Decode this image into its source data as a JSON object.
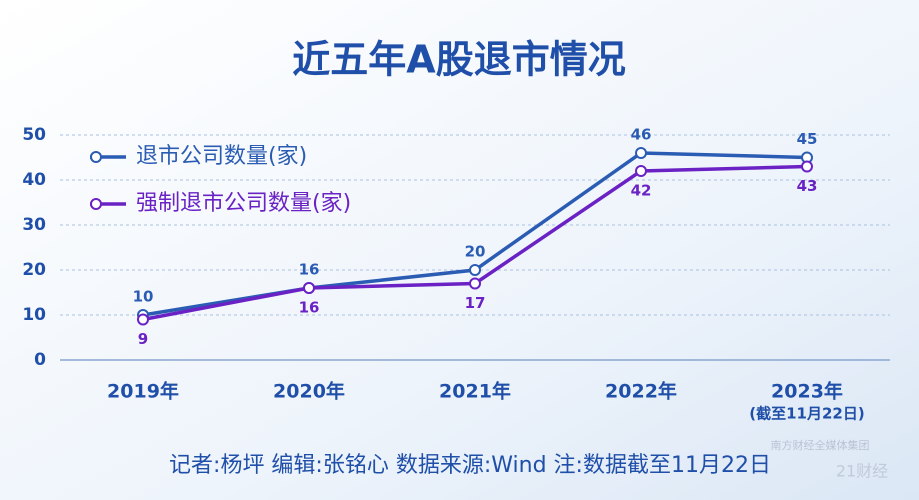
{
  "chart_data": {
    "type": "line",
    "title": "近五年A股退市情况",
    "categories": [
      "2019年",
      "2020年",
      "2021年",
      "2022年",
      "2023年"
    ],
    "category_notes": [
      null,
      null,
      null,
      null,
      "(截至11月22日)"
    ],
    "series": [
      {
        "name": "退市公司数量(家)",
        "color": "#2b5cb3",
        "values": [
          10,
          16,
          20,
          46,
          45
        ]
      },
      {
        "name": "强制退市公司数量(家)",
        "color": "#6a22c4",
        "values": [
          9,
          16,
          17,
          42,
          43
        ]
      }
    ],
    "ylim": [
      0,
      50
    ],
    "yticks": [
      0,
      10,
      20,
      30,
      40,
      50
    ],
    "grid": true,
    "legend": "top-left",
    "footer": "记者:杨坪   编辑:张铭心   数据来源:Wind   注:数据截至11月22日",
    "watermark": [
      "南方财经全媒体集团",
      "21财经"
    ]
  }
}
